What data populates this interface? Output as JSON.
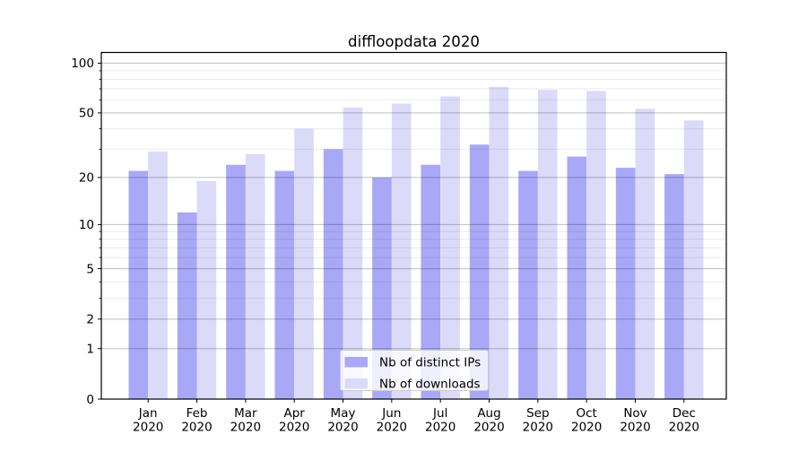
{
  "chart_data": {
    "type": "bar",
    "title": "diffloopdata 2020",
    "months": [
      "Jan",
      "Feb",
      "Mar",
      "Apr",
      "May",
      "Jun",
      "Jul",
      "Aug",
      "Sep",
      "Oct",
      "Nov",
      "Dec"
    ],
    "year": "2020",
    "series": [
      {
        "name": "Nb of distinct IPs",
        "color": "#a8a8f6",
        "values": [
          22,
          12,
          24,
          22,
          30,
          20,
          24,
          32,
          22,
          27,
          23,
          21
        ]
      },
      {
        "name": "Nb of downloads",
        "color": "#dbdbf9",
        "values": [
          29,
          19,
          28,
          40,
          54,
          57,
          63,
          72,
          69,
          68,
          53,
          45
        ]
      }
    ],
    "yscale": "log1p",
    "ylim": [
      0,
      116
    ],
    "yticks": [
      0,
      1,
      2,
      5,
      10,
      20,
      50,
      100
    ],
    "yticks_minor": [
      3,
      4,
      6,
      7,
      8,
      9,
      30,
      40,
      60,
      70,
      80,
      90
    ],
    "grid": true,
    "legend": {
      "position": "lower center",
      "entries": [
        "Nb of distinct IPs",
        "Nb of downloads"
      ]
    },
    "colors": {
      "distinct_ips": "#a8a8f6",
      "downloads": "#dbdbf9",
      "major_grid": "rgba(0,0,0,0.25)",
      "minor_grid": "rgba(0,0,0,0.08)"
    }
  }
}
